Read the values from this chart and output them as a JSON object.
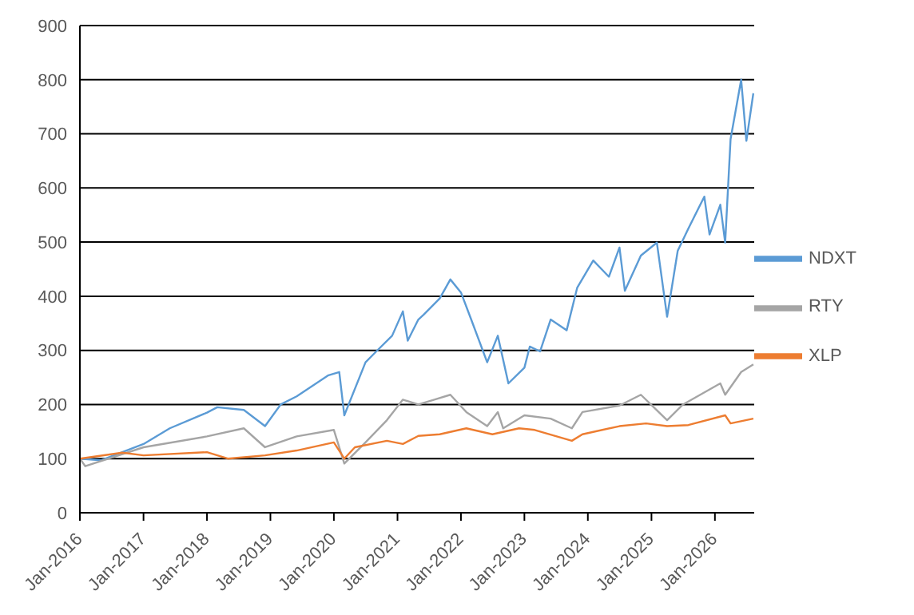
{
  "chart_data": {
    "type": "line",
    "xlim": [
      "2016-01",
      "2026-08-15"
    ],
    "ylim": [
      0,
      900
    ],
    "yticks": [
      0,
      100,
      200,
      300,
      400,
      500,
      600,
      700,
      800,
      900
    ],
    "xticks": [
      {
        "value": "2016-01",
        "label": "Jan-2016"
      },
      {
        "value": "2017-01",
        "label": "Jan-2017"
      },
      {
        "value": "2018-01",
        "label": "Jan-2018"
      },
      {
        "value": "2019-01",
        "label": "Jan-2019"
      },
      {
        "value": "2020-01",
        "label": "Jan-2020"
      },
      {
        "value": "2021-01",
        "label": "Jan-2021"
      },
      {
        "value": "2022-01",
        "label": "Jan-2022"
      },
      {
        "value": "2023-01",
        "label": "Jan-2023"
      },
      {
        "value": "2024-01",
        "label": "Jan-2024"
      },
      {
        "value": "2025-01",
        "label": "Jan-2025"
      },
      {
        "value": "2026-01",
        "label": "Jan-2026"
      }
    ],
    "grid": "y",
    "legend": "right",
    "marker": "none",
    "line_style": "solid",
    "series": [
      {
        "name": "NDXT",
        "color": "#5b9bd5",
        "x": [
          "2016-01",
          "2016-05",
          "2017-01",
          "2017-06",
          "2018-01",
          "2018-03",
          "2018-08",
          "2018-12",
          "2019-03",
          "2019-06",
          "2019-12",
          "2020-02",
          "2020-03",
          "2020-07",
          "2020-09",
          "2020-12",
          "2021-02",
          "2021-03",
          "2021-05",
          "2021-06",
          "2021-09",
          "2021-11",
          "2022-01",
          "2022-03",
          "2022-06",
          "2022-08",
          "2022-10",
          "2023-01",
          "2023-02",
          "2023-04",
          "2023-06",
          "2023-09",
          "2023-11",
          "2024-02",
          "2024-05",
          "2024-07",
          "2024-08",
          "2024-11",
          "2025-02",
          "2025-04",
          "2025-06",
          "2025-08",
          "2025-11",
          "2025-12",
          "2026-02",
          "2026-03",
          "2026-04",
          "2026-06",
          "2026-07",
          "2026-08-10"
        ],
        "values": [
          100,
          97,
          127,
          156,
          185,
          195,
          190,
          160,
          200,
          215,
          254,
          260,
          180,
          278,
          298,
          327,
          372,
          318,
          357,
          366,
          396,
          431,
          407,
          357,
          278,
          327,
          239,
          268,
          307,
          298,
          357,
          337,
          416,
          466,
          436,
          490,
          410,
          475,
          499,
          362,
          484,
          525,
          584,
          514,
          569,
          499,
          690,
          800,
          687,
          775
        ]
      },
      {
        "name": "RTY",
        "color": "#a5a5a5",
        "x": [
          "2016-01",
          "2016-02",
          "2017-01",
          "2018-01",
          "2018-08",
          "2018-12",
          "2019-06",
          "2020-01",
          "2020-03",
          "2020-07",
          "2020-11",
          "2021-02",
          "2021-05",
          "2021-08",
          "2021-11",
          "2022-02",
          "2022-06",
          "2022-08",
          "2022-09",
          "2023-01",
          "2023-06",
          "2023-10",
          "2023-12",
          "2024-07",
          "2024-11",
          "2025-04",
          "2025-07",
          "2026-02",
          "2026-03",
          "2026-06",
          "2026-08-10"
        ],
        "values": [
          100,
          86,
          121,
          141,
          156,
          121,
          141,
          153,
          91,
          130,
          171,
          209,
          200,
          209,
          218,
          186,
          160,
          186,
          156,
          180,
          174,
          156,
          186,
          198,
          218,
          171,
          200,
          239,
          218,
          260,
          274
        ]
      },
      {
        "name": "XLP",
        "color": "#ed7d31",
        "x": [
          "2016-01",
          "2016-09",
          "2017-01",
          "2018-01",
          "2018-05",
          "2018-12",
          "2019-06",
          "2020-01",
          "2020-03",
          "2020-05",
          "2020-11",
          "2021-02",
          "2021-05",
          "2021-09",
          "2022-02",
          "2022-07",
          "2022-12",
          "2023-03",
          "2023-10",
          "2023-12",
          "2024-07",
          "2024-12",
          "2025-04",
          "2025-08",
          "2026-03",
          "2026-04",
          "2026-08-10"
        ],
        "values": [
          100,
          111,
          106,
          112,
          100,
          106,
          115,
          130,
          100,
          121,
          133,
          127,
          142,
          145,
          156,
          145,
          156,
          153,
          133,
          145,
          160,
          165,
          160,
          162,
          180,
          165,
          174
        ]
      }
    ]
  }
}
